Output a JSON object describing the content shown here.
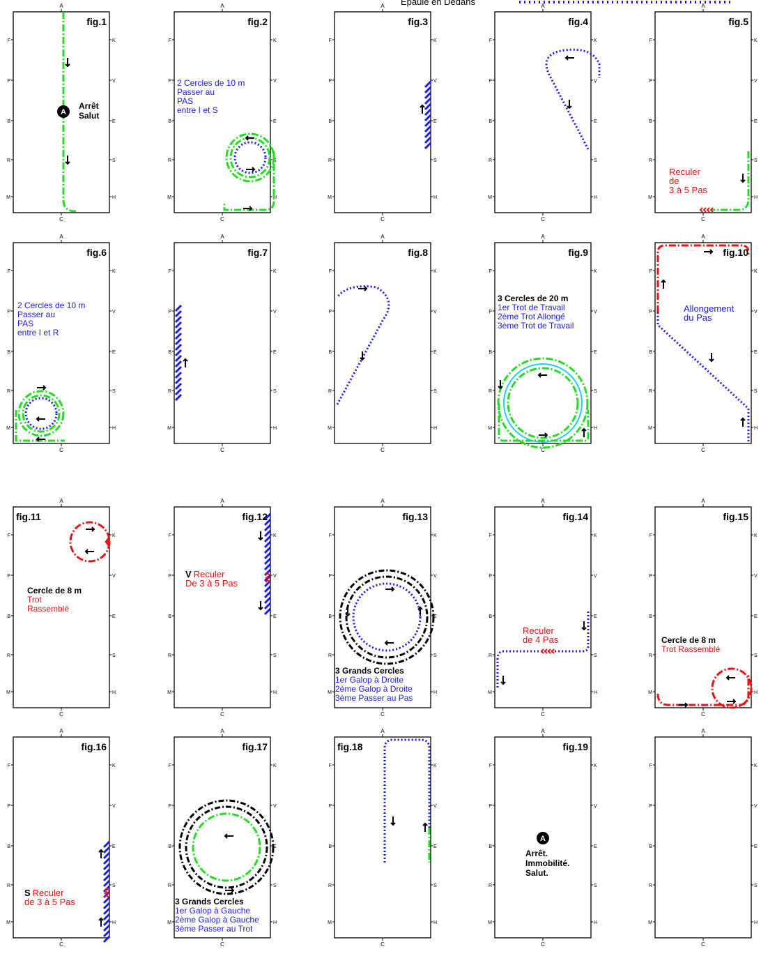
{
  "legend_label": "Epaule en Dedans",
  "colors": {
    "green": "#22dd22",
    "blue": "#1a1aee",
    "red": "#ee1111",
    "black": "#000000",
    "cyan": "#22ccff"
  },
  "letters_top": "A",
  "letters_bottom": "C",
  "letters_left": [
    "F",
    "P",
    "B",
    "R",
    "M"
  ],
  "letters_right": [
    "K",
    "V",
    "E",
    "S",
    "H"
  ],
  "figures": [
    {
      "label": "fig.1",
      "texts": [
        {
          "t": "Arrêt",
          "c": "black",
          "b": true
        },
        {
          "t": "Salut",
          "c": "black",
          "b": true
        }
      ]
    },
    {
      "label": "fig.2",
      "texts": [
        {
          "t": "2 Cercles de 10 m",
          "c": "blue"
        },
        {
          "t": "Passer au",
          "c": "blue"
        },
        {
          "t": "PAS",
          "c": "blue"
        },
        {
          "t": "entre I et S",
          "c": "blue"
        }
      ]
    },
    {
      "label": "fig.3",
      "texts": []
    },
    {
      "label": "fig.4",
      "texts": []
    },
    {
      "label": "fig.5",
      "texts": [
        {
          "t": "Reculer",
          "c": "red"
        },
        {
          "t": "de",
          "c": "red"
        },
        {
          "t": "3 à 5 Pas",
          "c": "red"
        }
      ]
    },
    {
      "label": "fig.6",
      "texts": [
        {
          "t": "2 Cercles de 10 m",
          "c": "blue"
        },
        {
          "t": "Passer au",
          "c": "blue"
        },
        {
          "t": "PAS",
          "c": "blue"
        },
        {
          "t": "entre I et R",
          "c": "blue"
        }
      ]
    },
    {
      "label": "fig.7",
      "texts": []
    },
    {
      "label": "fig.8",
      "texts": []
    },
    {
      "label": "fig.9",
      "texts": [
        {
          "t": "3 Cercles de 20 m",
          "c": "black",
          "b": true
        },
        {
          "t": "1er Trot de Travail",
          "c": "blue"
        },
        {
          "t": "2ème Trot Allongé",
          "c": "blue"
        },
        {
          "t": "3ème Trot de Travail",
          "c": "blue"
        }
      ]
    },
    {
      "label": "fig.10",
      "texts": [
        {
          "t": "Allongement",
          "c": "blue"
        },
        {
          "t": "du Pas",
          "c": "blue"
        }
      ]
    },
    {
      "label": "fig.11",
      "texts": [
        {
          "t": "Cercle de 8 m",
          "c": "black",
          "b": true
        },
        {
          "t": "Trot",
          "c": "red"
        },
        {
          "t": "Rassemblé",
          "c": "red"
        }
      ]
    },
    {
      "label": "fig.12",
      "texts": [
        {
          "t": "V",
          "c": "black",
          "b": true
        },
        {
          "t": "Reculer",
          "c": "red"
        },
        {
          "t": "De 3 à 5 Pas",
          "c": "red"
        }
      ]
    },
    {
      "label": "fig.13",
      "texts": [
        {
          "t": "3 Grands Cercles",
          "c": "black",
          "b": true
        },
        {
          "t": "1er Galop à Droite",
          "c": "blue"
        },
        {
          "t": "2ème Galop à Droite",
          "c": "blue"
        },
        {
          "t": "3ème Passer au Pas",
          "c": "blue"
        }
      ]
    },
    {
      "label": "fig.14",
      "texts": [
        {
          "t": "Reculer",
          "c": "red"
        },
        {
          "t": "de 4 Pas",
          "c": "red"
        }
      ]
    },
    {
      "label": "fig.15",
      "texts": [
        {
          "t": "Cercle de 8 m",
          "c": "black",
          "b": true
        },
        {
          "t": "Trot Rassemblé",
          "c": "red"
        }
      ]
    },
    {
      "label": "fig.16",
      "texts": [
        {
          "t": "S",
          "c": "black",
          "b": true
        },
        {
          "t": "Reculer",
          "c": "red"
        },
        {
          "t": "de 3 à 5 Pas",
          "c": "red"
        }
      ]
    },
    {
      "label": "fig.17",
      "texts": [
        {
          "t": "3 Grands Cercles",
          "c": "black",
          "b": true
        },
        {
          "t": "1er Galop à Gauche",
          "c": "blue"
        },
        {
          "t": "2ème Galop à Gauche",
          "c": "blue"
        },
        {
          "t": "3ème Passer au Trot",
          "c": "blue"
        }
      ]
    },
    {
      "label": "fig.18",
      "texts": []
    },
    {
      "label": "fig.19",
      "texts": [
        {
          "t": "A",
          "c": "white",
          "b": true
        },
        {
          "t": "Arrêt.",
          "c": "black",
          "b": true
        },
        {
          "t": "Immobilité.",
          "c": "black",
          "b": true
        },
        {
          "t": "Salut.",
          "c": "black",
          "b": true
        }
      ]
    },
    {
      "label": "",
      "texts": []
    }
  ]
}
